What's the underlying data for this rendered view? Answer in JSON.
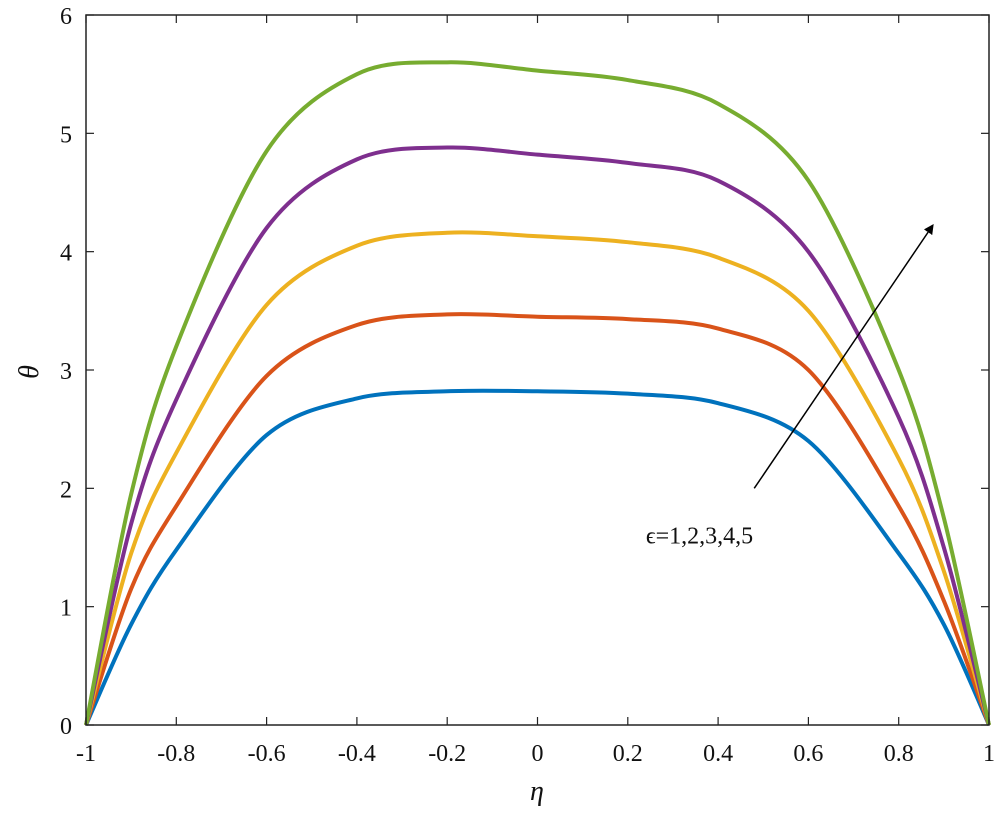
{
  "chart_data": {
    "type": "line",
    "title": "",
    "xlabel": "η",
    "ylabel": "θ",
    "xlim": [
      -1,
      1
    ],
    "ylim": [
      0,
      6
    ],
    "xticks": [
      "-1",
      "-0.8",
      "-0.6",
      "-0.4",
      "-0.2",
      "0",
      "0.2",
      "0.4",
      "0.6",
      "0.8",
      "1"
    ],
    "yticks": [
      "0",
      "1",
      "2",
      "3",
      "4",
      "5",
      "6"
    ],
    "grid": false,
    "x": [
      -1,
      -0.9,
      -0.8,
      -0.6,
      -0.4,
      -0.2,
      0,
      0.2,
      0.4,
      0.6,
      0.8,
      0.9,
      1
    ],
    "series": [
      {
        "name": "ϵ=1",
        "color": "#0072BD",
        "values": [
          0,
          0.85,
          1.48,
          2.45,
          2.76,
          2.82,
          2.82,
          2.8,
          2.72,
          2.4,
          1.45,
          0.85,
          0
        ]
      },
      {
        "name": "ϵ=2",
        "color": "#D95319",
        "values": [
          0,
          1.15,
          1.85,
          2.95,
          3.38,
          3.47,
          3.45,
          3.43,
          3.35,
          3.0,
          1.85,
          1.05,
          0
        ]
      },
      {
        "name": "ϵ=3",
        "color": "#EDB120",
        "values": [
          0,
          1.45,
          2.3,
          3.55,
          4.05,
          4.16,
          4.13,
          4.08,
          3.95,
          3.5,
          2.25,
          1.3,
          0
        ]
      },
      {
        "name": "ϵ=4",
        "color": "#7E2F8E",
        "values": [
          0,
          1.7,
          2.75,
          4.2,
          4.78,
          4.88,
          4.82,
          4.75,
          4.6,
          4.0,
          2.6,
          1.5,
          0
        ]
      },
      {
        "name": "ϵ=5",
        "color": "#77AC30",
        "values": [
          0,
          1.95,
          3.2,
          4.85,
          5.5,
          5.6,
          5.53,
          5.45,
          5.25,
          4.6,
          3.0,
          1.75,
          0
        ]
      }
    ],
    "annotation": {
      "text": "ϵ=1,2,3,4,5",
      "x": 0.24,
      "y": 1.6,
      "arrow_from": [
        0.48,
        2.0
      ],
      "arrow_to": [
        0.875,
        4.22
      ]
    }
  }
}
